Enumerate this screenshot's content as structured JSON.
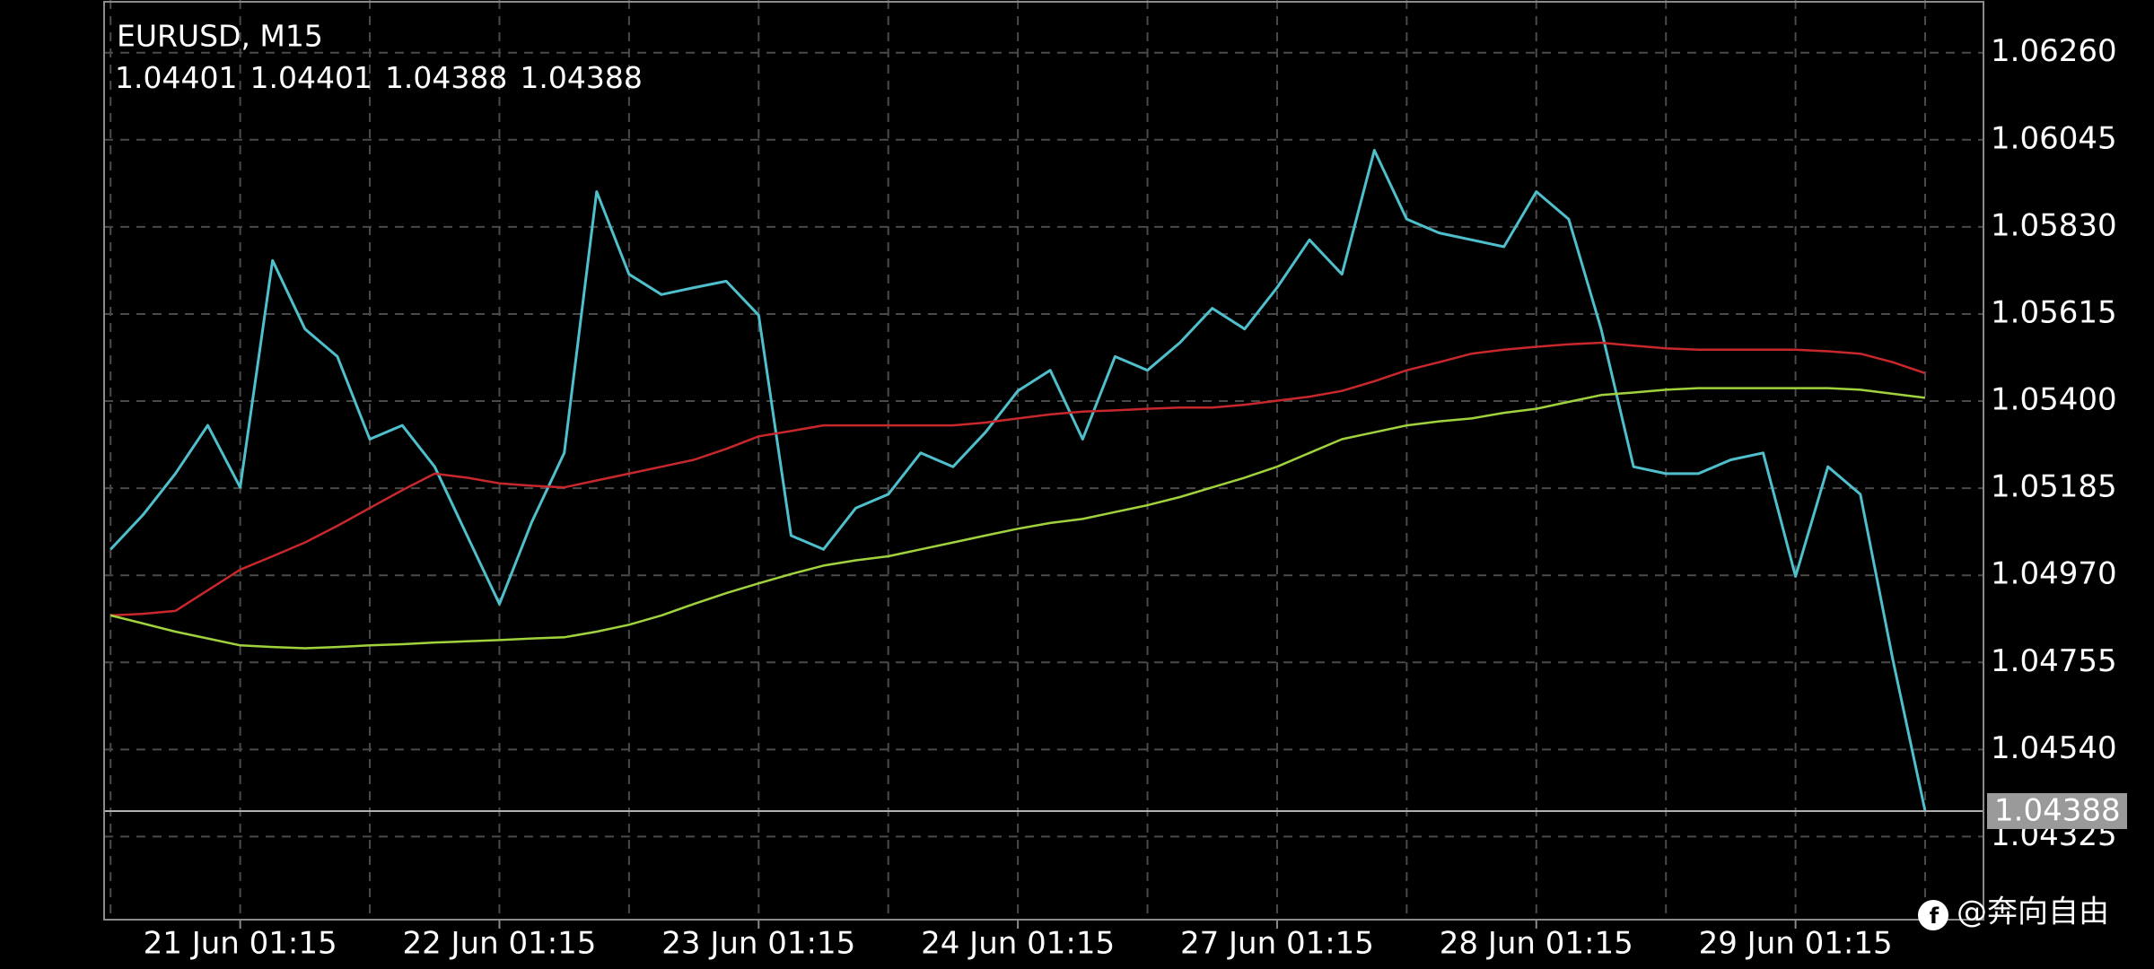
{
  "chart_data": {
    "type": "line",
    "title": "EURUSD, M15",
    "ohlc": [
      1.04401,
      1.04401,
      1.04388,
      1.04388
    ],
    "last_price": 1.04388,
    "watermark": "@奔向自由",
    "categories": [
      null,
      null,
      null,
      null,
      "21 Jun 01:15",
      null,
      null,
      null,
      null,
      null,
      null,
      null,
      "22 Jun 01:15",
      null,
      null,
      null,
      null,
      null,
      null,
      null,
      "23 Jun 01:15",
      null,
      null,
      null,
      null,
      null,
      null,
      null,
      "24 Jun 01:15",
      null,
      null,
      null,
      null,
      null,
      null,
      null,
      "27 Jun 01:15",
      null,
      null,
      null,
      null,
      null,
      null,
      null,
      "28 Jun 01:15",
      null,
      null,
      null,
      null,
      null,
      null,
      null,
      "29 Jun 01:15",
      null,
      null,
      null,
      null
    ],
    "series": [
      {
        "name": "EURUSD",
        "color": "#4fbfcc",
        "values": [
          1.05034,
          1.05119,
          1.05221,
          1.0534,
          1.05187,
          1.05747,
          1.05578,
          1.0551,
          1.05306,
          1.0534,
          1.05238,
          1.05068,
          1.04899,
          1.05102,
          1.05272,
          1.05917,
          1.05713,
          1.05663,
          1.0568,
          1.05696,
          1.05612,
          1.05068,
          1.05034,
          1.05136,
          1.0517,
          1.05272,
          1.05238,
          1.05323,
          1.05425,
          1.05476,
          1.05306,
          1.0551,
          1.05476,
          1.05544,
          1.05629,
          1.05578,
          1.0568,
          1.05798,
          1.05713,
          1.06019,
          1.05849,
          1.05815,
          1.05798,
          1.05781,
          1.05917,
          1.05849,
          1.05578,
          1.05238,
          1.05221,
          1.05221,
          1.05255,
          1.05272,
          1.04967,
          1.05238,
          1.0517,
          1.04763,
          1.04388
        ]
      },
      {
        "name": "MA red",
        "color": "#c8282c",
        "values": [
          1.04871,
          1.04875,
          1.04882,
          1.04933,
          1.04984,
          1.05017,
          1.05051,
          1.05092,
          1.05136,
          1.0518,
          1.05221,
          1.05211,
          1.05197,
          1.05191,
          1.05187,
          1.05204,
          1.05221,
          1.05238,
          1.05255,
          1.05282,
          1.05313,
          1.05326,
          1.0534,
          1.0534,
          1.0534,
          1.0534,
          1.0534,
          1.05347,
          1.05357,
          1.05367,
          1.05374,
          1.05377,
          1.05381,
          1.05384,
          1.05384,
          1.05391,
          1.05401,
          1.05411,
          1.05425,
          1.05449,
          1.05476,
          1.05496,
          1.05517,
          1.05527,
          1.05534,
          1.0554,
          1.05544,
          1.05537,
          1.0553,
          1.05527,
          1.05527,
          1.05527,
          1.05527,
          1.05523,
          1.05517,
          1.05496,
          1.05469
        ]
      },
      {
        "name": "MA green",
        "color": "#9fd23c",
        "values": [
          1.04871,
          1.04851,
          1.04831,
          1.04814,
          1.04797,
          1.04793,
          1.0479,
          1.04793,
          1.04797,
          1.048,
          1.04804,
          1.04807,
          1.0481,
          1.04814,
          1.04817,
          1.04831,
          1.04848,
          1.04871,
          1.04899,
          1.04926,
          1.0495,
          1.04973,
          1.04994,
          1.05007,
          1.05017,
          1.05034,
          1.05051,
          1.05068,
          1.05085,
          1.05099,
          1.05109,
          1.05126,
          1.05143,
          1.05163,
          1.05187,
          1.05211,
          1.05238,
          1.05272,
          1.05306,
          1.05323,
          1.0534,
          1.0535,
          1.05357,
          1.05371,
          1.05381,
          1.05398,
          1.05415,
          1.05421,
          1.05428,
          1.05432,
          1.05432,
          1.05432,
          1.05432,
          1.05432,
          1.05428,
          1.05418,
          1.05408
        ]
      }
    ],
    "ylim": [
      1.0412,
      1.0639
    ],
    "yticks": [
      {
        "value": 1.0626,
        "label": "1.06260"
      },
      1.06045,
      {
        "value": 1.0583,
        "label": "1.05830"
      },
      1.05615,
      {
        "value": 1.054,
        "label": "1.05400"
      },
      1.05185,
      {
        "value": 1.0497,
        "label": "1.04970"
      },
      1.04755,
      {
        "value": 1.0454,
        "label": "1.04540"
      },
      1.04325
    ],
    "grid": true
  }
}
